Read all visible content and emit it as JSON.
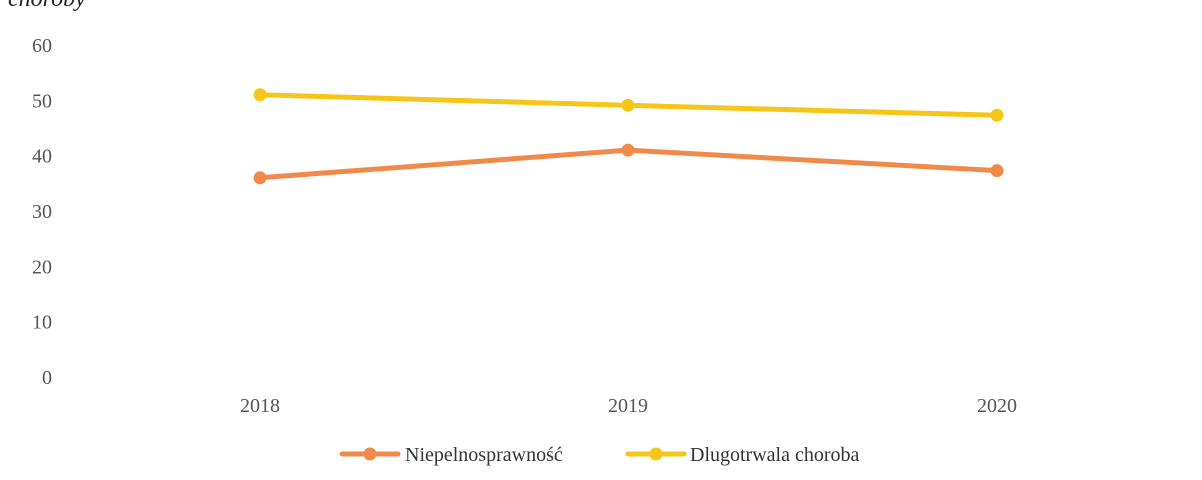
{
  "chart_data": {
    "type": "line",
    "title": "choroby",
    "xlabel": "",
    "ylabel": "",
    "categories": [
      "2018",
      "2019",
      "2020"
    ],
    "ylim": [
      0,
      60
    ],
    "yticks": [
      0,
      10,
      20,
      30,
      40,
      50,
      60
    ],
    "grid": false,
    "legend": "bottom-center",
    "series": [
      {
        "name": "Niepelnosprawność",
        "values": [
          36,
          41,
          37.3
        ],
        "color": "#f08a4b"
      },
      {
        "name": "Dlugotrwala choroba",
        "values": [
          51,
          49.1,
          47.3
        ],
        "color": "#f5c518"
      }
    ]
  }
}
